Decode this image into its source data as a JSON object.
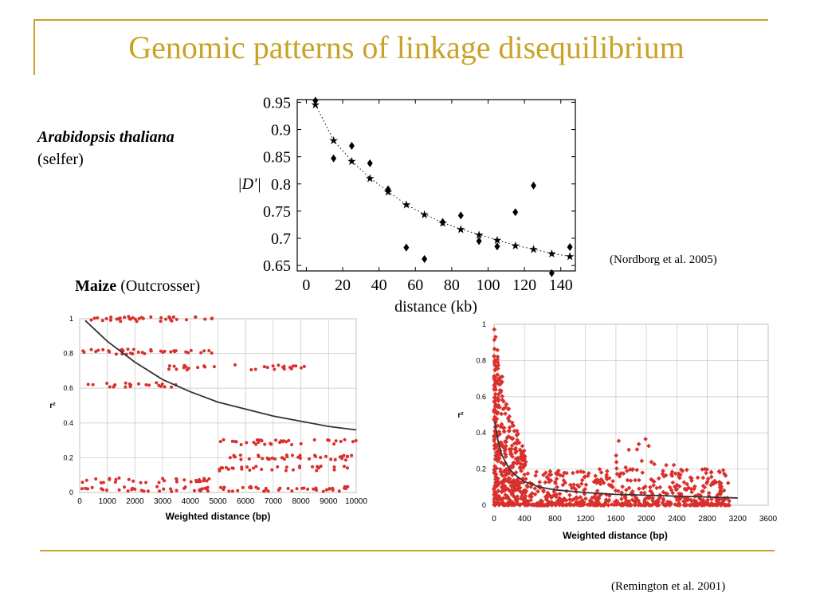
{
  "slide": {
    "title": "Genomic patterns of linkage disequilibrium",
    "arabidopsis_label": {
      "species": "Arabidopsis thaliana",
      "mating": "(selfer)"
    },
    "maize_label": {
      "species": "Maize",
      "mating": "(Outcrosser)"
    },
    "citation_top": "(Nordborg et al. 2005)",
    "citation_bottom": "(Remington et al. 2001)",
    "colors": {
      "accent": "#c9a227",
      "point_red": "#d9302c",
      "curve": "#333333"
    }
  },
  "chart_data": [
    {
      "type": "scatter",
      "title": "",
      "xlabel": "distance (kb)",
      "ylabel": "|D'|",
      "xlim": [
        -5,
        148
      ],
      "ylim": [
        0.64,
        0.955
      ],
      "xticks": [
        0,
        20,
        40,
        60,
        80,
        100,
        120,
        140
      ],
      "yticks": [
        0.65,
        0.7,
        0.75,
        0.8,
        0.85,
        0.9,
        0.95
      ],
      "ytick_labels": [
        "0.65",
        "0.7",
        "0.75",
        "0.8",
        "0.85",
        "0.9",
        "0.95"
      ],
      "series": [
        {
          "marker": "diamond",
          "x": [
            5,
            15,
            25,
            35,
            45,
            55,
            65,
            75,
            85,
            95,
            105,
            115,
            125,
            135,
            145
          ],
          "y": [
            0.953,
            0.847,
            0.87,
            0.838,
            0.79,
            0.683,
            0.662,
            0.73,
            0.742,
            0.695,
            0.685,
            0.748,
            0.797,
            0.636,
            0.684
          ]
        },
        {
          "marker": "star",
          "line": "dotted",
          "x": [
            5,
            15,
            25,
            35,
            45,
            55,
            65,
            75,
            85,
            95,
            105,
            115,
            125,
            135,
            145
          ],
          "y": [
            0.946,
            0.88,
            0.842,
            0.811,
            0.786,
            0.762,
            0.744,
            0.729,
            0.717,
            0.707,
            0.697,
            0.687,
            0.68,
            0.672,
            0.667
          ]
        }
      ]
    },
    {
      "type": "scatter",
      "title": "",
      "xlabel": "Weighted distance (bp)",
      "ylabel": "r²",
      "xlim": [
        0,
        10000
      ],
      "ylim": [
        0,
        1
      ],
      "xticks": [
        0,
        1000,
        2000,
        3000,
        4000,
        5000,
        6000,
        7000,
        8000,
        9000,
        10000
      ],
      "yticks": [
        0,
        0.2,
        0.4,
        0.6,
        0.8,
        1
      ],
      "ytick_labels": [
        "0",
        "0.2",
        "0.4",
        "0.6",
        "0.8",
        "1"
      ],
      "grid": true,
      "point_bands": [
        {
          "y": 1.0,
          "x_range": [
            0,
            4800
          ]
        },
        {
          "y": 0.81,
          "x_range": [
            0,
            4900
          ]
        },
        {
          "y": 0.72,
          "x_range": [
            5500,
            8200
          ]
        },
        {
          "y": 0.72,
          "x_range": [
            3000,
            4900
          ]
        },
        {
          "y": 0.62,
          "x_range": [
            200,
            3600
          ]
        },
        {
          "y": 0.29,
          "x_range": [
            5000,
            10000
          ]
        },
        {
          "y": 0.2,
          "x_range": [
            5000,
            10000
          ]
        },
        {
          "y": 0.14,
          "x_range": [
            5000,
            10000
          ]
        },
        {
          "y": 0.07,
          "x_range": [
            0,
            4700
          ]
        },
        {
          "y": 0.02,
          "x_range": [
            0,
            10000
          ]
        }
      ],
      "trend_curve": {
        "x": [
          200,
          1000,
          2000,
          3000,
          4000,
          5000,
          6000,
          7000,
          8000,
          9000,
          10000
        ],
        "y": [
          0.99,
          0.87,
          0.75,
          0.65,
          0.58,
          0.52,
          0.48,
          0.44,
          0.41,
          0.38,
          0.36
        ]
      }
    },
    {
      "type": "scatter",
      "title": "",
      "xlabel": "Weighted distance (bp)",
      "ylabel": "r²",
      "xlim": [
        0,
        3600
      ],
      "ylim": [
        0,
        1
      ],
      "xticks": [
        0,
        400,
        800,
        1200,
        1600,
        2000,
        2400,
        2800,
        3200,
        3600
      ],
      "yticks": [
        0,
        0.2,
        0.4,
        0.6,
        0.8,
        1
      ],
      "ytick_labels": [
        "0",
        "0.2",
        "0.4",
        "0.6",
        "0.8",
        "1"
      ],
      "grid": true,
      "trend_curve": {
        "x": [
          10,
          50,
          100,
          200,
          300,
          400,
          600,
          800,
          1200,
          1600,
          2000,
          2400,
          2800,
          3200
        ],
        "y": [
          0.46,
          0.36,
          0.28,
          0.2,
          0.16,
          0.13,
          0.1,
          0.085,
          0.07,
          0.06,
          0.055,
          0.05,
          0.045,
          0.04
        ]
      }
    }
  ]
}
